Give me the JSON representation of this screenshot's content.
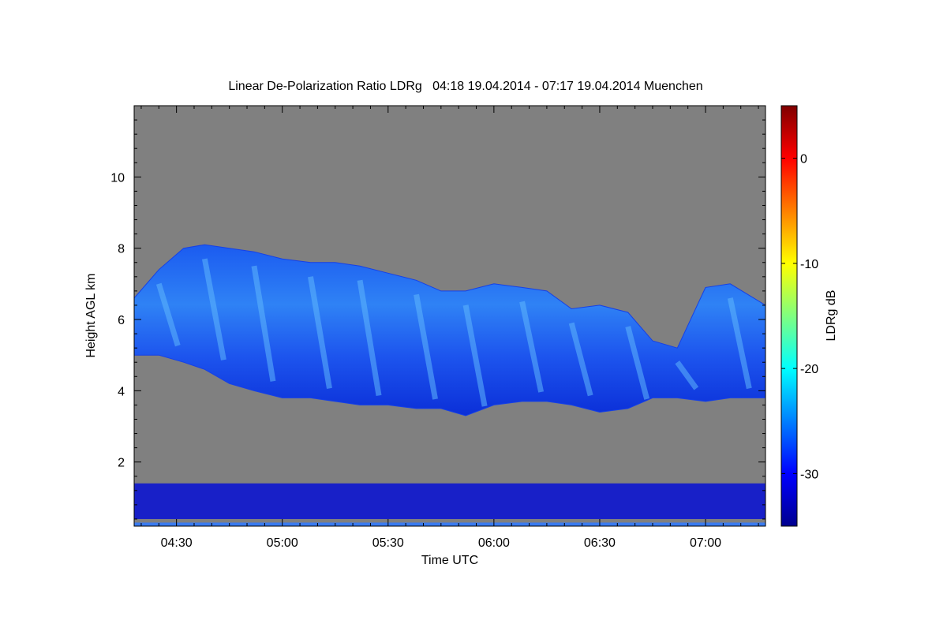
{
  "chart_data": {
    "type": "heatmap",
    "title": "Linear De-Polarization Ratio LDRg   04:18 19.04.2014 - 07:17 19.04.2014 Muenchen",
    "xlabel": "Time UTC",
    "ylabel": "Height AGL km",
    "x_ticks": [
      "04:30",
      "05:00",
      "05:30",
      "06:00",
      "06:30",
      "07:00"
    ],
    "y_ticks": [
      "2",
      "4",
      "6",
      "8",
      "10"
    ],
    "xlim": [
      "04:18",
      "07:17"
    ],
    "ylim": [
      0.2,
      12.0
    ],
    "colorbar": {
      "label": "LDRg dB",
      "ticks": [
        "0",
        "-10",
        "-20",
        "-30"
      ],
      "range": [
        -35,
        5
      ],
      "colormap": "jet"
    },
    "background_color": "#808080",
    "features": [
      {
        "name": "cirrus cloud layer",
        "time_start": "04:18",
        "time_end": "07:17",
        "base_km_min": 3.3,
        "top_km_max": 8.2,
        "ldr_db_range": [
          -33,
          -20
        ]
      },
      {
        "name": "near-surface layer",
        "time_start": "04:18",
        "time_end": "07:17",
        "base_km": 0.4,
        "top_km": 1.4,
        "ldr_db_range": [
          -35,
          -30
        ]
      }
    ],
    "cloud_top_km": {
      "times": [
        "04:18",
        "04:25",
        "04:32",
        "04:38",
        "04:45",
        "04:52",
        "05:00",
        "05:08",
        "05:15",
        "05:22",
        "05:30",
        "05:38",
        "05:45",
        "05:52",
        "06:00",
        "06:08",
        "06:15",
        "06:22",
        "06:30",
        "06:38",
        "06:45",
        "06:52",
        "07:00",
        "07:07",
        "07:17"
      ],
      "values": [
        6.6,
        7.4,
        8.0,
        8.1,
        8.0,
        7.9,
        7.7,
        7.6,
        7.6,
        7.5,
        7.3,
        7.1,
        6.8,
        6.8,
        7.0,
        6.9,
        6.8,
        6.3,
        6.4,
        6.2,
        5.4,
        5.2,
        6.9,
        7.0,
        6.4
      ]
    },
    "cloud_base_km": {
      "times": [
        "04:18",
        "04:25",
        "04:32",
        "04:38",
        "04:45",
        "04:52",
        "05:00",
        "05:08",
        "05:15",
        "05:22",
        "05:30",
        "05:38",
        "05:45",
        "05:52",
        "06:00",
        "06:08",
        "06:15",
        "06:22",
        "06:30",
        "06:38",
        "06:45",
        "06:52",
        "07:00",
        "07:07",
        "07:17"
      ],
      "values": [
        5.0,
        5.0,
        4.8,
        4.6,
        4.2,
        4.0,
        3.8,
        3.8,
        3.7,
        3.6,
        3.6,
        3.5,
        3.5,
        3.3,
        3.6,
        3.7,
        3.7,
        3.6,
        3.4,
        3.5,
        3.8,
        3.8,
        3.7,
        3.8,
        3.8
      ]
    }
  }
}
